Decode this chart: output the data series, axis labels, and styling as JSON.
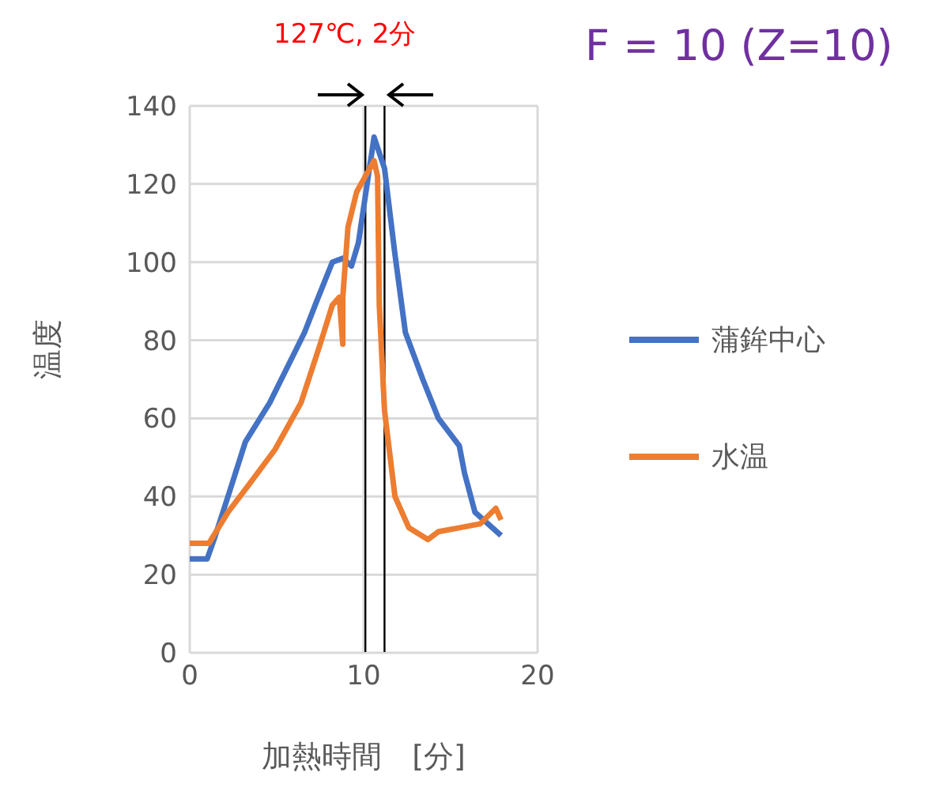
{
  "chart_data": {
    "type": "line",
    "title": "F = 10 (Z=10)",
    "xlabel": "加熱時間　[分]",
    "ylabel": "温度",
    "annotations": [
      "127℃, 2分"
    ],
    "xlim": [
      0,
      20
    ],
    "xticks": [
      0,
      10,
      20
    ],
    "ylim": [
      0,
      140
    ],
    "yticks": [
      0,
      20,
      40,
      60,
      80,
      100,
      120,
      140
    ],
    "grid": true,
    "legend": "right",
    "marker": "none",
    "line_style": "solid",
    "ref_lines": [
      {
        "axis": "x",
        "value": 10.1,
        "color": "#000000"
      },
      {
        "axis": "x",
        "value": 11.2,
        "color": "#000000"
      }
    ],
    "series": [
      {
        "name": "蒲鉾中心",
        "color": "#4472c4",
        "x": [
          0,
          1.0,
          1.4,
          2.2,
          3.2,
          4.6,
          6.6,
          7.3,
          8.2,
          8.8,
          9.3,
          9.7,
          10.6,
          11.2,
          11.8,
          12.4,
          13.4,
          14.3,
          15.5,
          15.8,
          16.4,
          17.9
        ],
        "values": [
          24,
          24,
          29,
          40,
          54,
          64,
          82,
          90,
          100,
          101,
          99,
          105,
          132,
          124,
          102,
          82,
          70,
          60,
          53,
          46,
          36,
          30
        ]
      },
      {
        "name": "水温",
        "color": "#ed7d31",
        "x": [
          0,
          1.1,
          2.2,
          3.4,
          4.9,
          6.4,
          7.5,
          8.2,
          8.6,
          8.8,
          8.8,
          9.1,
          9.6,
          10.6,
          10.8,
          10.9,
          11.2,
          11.8,
          12.6,
          13.7,
          14.3,
          15.5,
          16.7,
          17.6,
          17.9
        ],
        "values": [
          28,
          28,
          36,
          43,
          52,
          64,
          79,
          89,
          91,
          79,
          91,
          109,
          118,
          126,
          122,
          89,
          62,
          40,
          32,
          29,
          31,
          32,
          33,
          37,
          34
        ]
      }
    ]
  }
}
